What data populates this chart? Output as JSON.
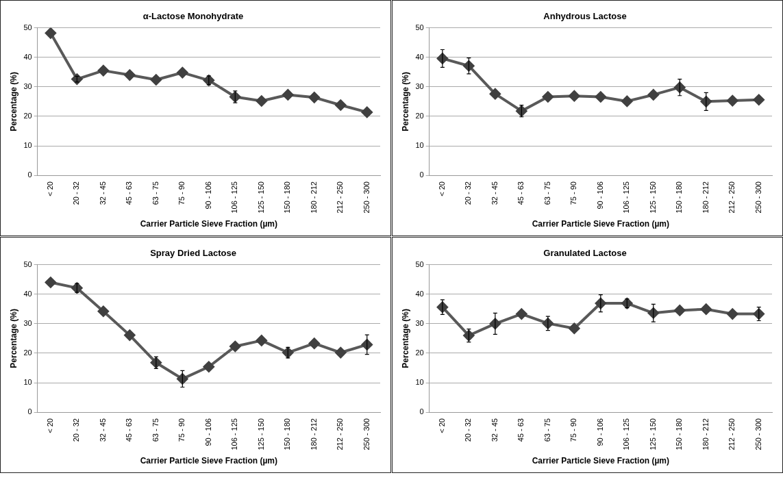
{
  "chart_data": [
    {
      "type": "line",
      "title": "α-Lactose Monohydrate",
      "xlabel": "Carrier Particle Sieve Fraction (µm)",
      "ylabel": "Percentage (%)",
      "categories": [
        "< 20",
        "20 - 32",
        "32 - 45",
        "45 - 63",
        "63 - 75",
        "75 - 90",
        "90 - 106",
        "106 - 125",
        "125 - 150",
        "150 - 180",
        "180 - 212",
        "212 - 250",
        "250 - 300"
      ],
      "series": [
        {
          "color": "#595959",
          "values": [
            48.2,
            32.6,
            35.5,
            34,
            32.4,
            34.8,
            32.2,
            26.6,
            25.2,
            27.3,
            26.4,
            23.8,
            21.4
          ],
          "errors": [
            null,
            1,
            null,
            null,
            null,
            null,
            1.5,
            2,
            null,
            null,
            null,
            null,
            null
          ]
        }
      ],
      "ylim": [
        0,
        50
      ],
      "yticks": [
        0,
        10,
        20,
        30,
        40,
        50
      ],
      "grid": "y",
      "legend": false,
      "marker": "diamond",
      "line_style": "solid"
    },
    {
      "type": "line",
      "title": "Anhydrous Lactose",
      "xlabel": "Carrier Particle Sieve Fraction (µm)",
      "ylabel": "Percentage (%)",
      "categories": [
        "< 20",
        "20 - 32",
        "32 - 45",
        "45 - 63",
        "63 - 75",
        "75 - 90",
        "90 - 106",
        "106 - 125",
        "125 - 150",
        "150 - 180",
        "180 - 212",
        "212 - 250",
        "250 - 300"
      ],
      "series": [
        {
          "color": "#595959",
          "values": [
            39.6,
            37.1,
            27.6,
            21.8,
            26.6,
            26.9,
            26.6,
            25.1,
            27.3,
            29.8,
            25,
            25.3,
            25.6
          ],
          "errors": [
            3,
            2.7,
            null,
            2,
            null,
            null,
            null,
            null,
            null,
            2.8,
            3,
            null,
            null
          ]
        }
      ],
      "ylim": [
        0,
        50
      ],
      "yticks": [
        0,
        10,
        20,
        30,
        40,
        50
      ],
      "grid": "y",
      "legend": false,
      "marker": "diamond",
      "line_style": "solid"
    },
    {
      "type": "line",
      "title": "Spray Dried Lactose",
      "xlabel": "Carrier Particle Sieve Fraction (µm)",
      "ylabel": "Percentage (%)",
      "categories": [
        "< 20",
        "20 - 32",
        "32 - 45",
        "45 - 63",
        "63 - 75",
        "75 - 90",
        "90 - 106",
        "106 - 125",
        "125 - 150",
        "150 - 180",
        "180 - 212",
        "212 - 250",
        "250 - 300"
      ],
      "series": [
        {
          "color": "#595959",
          "values": [
            44,
            42.1,
            34.2,
            26.1,
            16.8,
            11.3,
            15.4,
            22.3,
            24.3,
            20.2,
            23.3,
            20.2,
            22.9
          ],
          "errors": [
            null,
            1.5,
            null,
            null,
            2,
            2.8,
            null,
            null,
            null,
            1.8,
            null,
            null,
            3.3
          ]
        }
      ],
      "ylim": [
        0,
        50
      ],
      "yticks": [
        0,
        10,
        20,
        30,
        40,
        50
      ],
      "grid": "y",
      "legend": false,
      "marker": "diamond",
      "line_style": "solid"
    },
    {
      "type": "line",
      "title": "Granulated Lactose",
      "xlabel": "Carrier Particle Sieve Fraction (µm)",
      "ylabel": "Percentage (%)",
      "categories": [
        "< 20",
        "20 - 32",
        "32 - 45",
        "45 - 63",
        "63 - 75",
        "75 - 90",
        "90 - 106",
        "106 - 125",
        "125 - 150",
        "150 - 180",
        "180 - 212",
        "212 - 250",
        "250 - 300"
      ],
      "series": [
        {
          "color": "#595959",
          "values": [
            35.6,
            26,
            30,
            33.3,
            30.1,
            28.4,
            36.9,
            36.9,
            33.6,
            34.5,
            34.9,
            33.3,
            33.3
          ],
          "errors": [
            2.5,
            2.2,
            3.6,
            null,
            2.4,
            null,
            2.9,
            1.5,
            3,
            null,
            null,
            null,
            2.3
          ]
        }
      ],
      "ylim": [
        0,
        50
      ],
      "yticks": [
        0,
        10,
        20,
        30,
        40,
        50
      ],
      "grid": "y",
      "legend": false,
      "marker": "diamond",
      "line_style": "solid"
    }
  ]
}
